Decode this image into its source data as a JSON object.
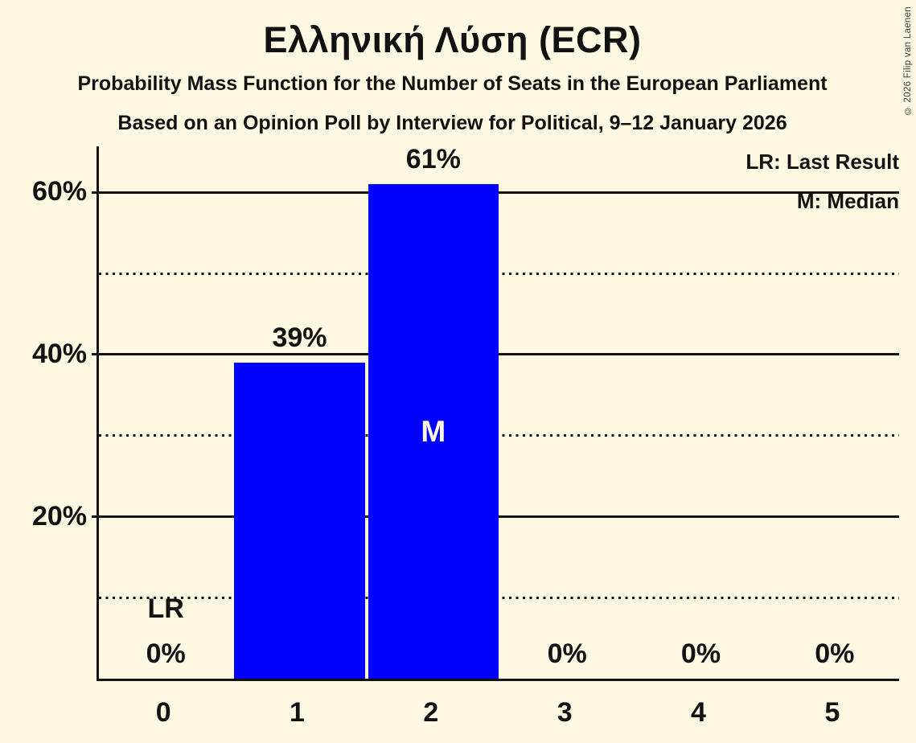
{
  "title": "Ελληνική Λύση (ECR)",
  "subtitle1": "Probability Mass Function for the Number of Seats in the European Parliament",
  "subtitle2": "Based on an Opinion Poll by Interview for Political, 9–12 January 2026",
  "copyright": "© 2026 Filip van Laenen",
  "legend": {
    "lr": "LR: Last Result",
    "m": "M: Median"
  },
  "colors": {
    "background": "#FDF8E1",
    "bar": "#0000FF",
    "text": "#121212",
    "median_text": "#FDF8E1"
  },
  "chart_data": {
    "type": "bar",
    "title": "Ελληνική Λύση (ECR)",
    "categories": [
      "0",
      "1",
      "2",
      "3",
      "4",
      "5"
    ],
    "values": [
      0,
      39,
      61,
      0,
      0,
      0
    ],
    "bar_labels": [
      "0%",
      "39%",
      "61%",
      "0%",
      "0%",
      "0%"
    ],
    "xlabel": "",
    "ylabel": "",
    "ylim": [
      0,
      66
    ],
    "yticks_solid": [
      20,
      40,
      60
    ],
    "ytick_labels": [
      "20%",
      "40%",
      "60%"
    ],
    "yticks_dotted": [
      10,
      30,
      50
    ],
    "grid": "solid lines at 20/40/60, dotted lines at 10/30/50",
    "legend_position": "top-right",
    "median_category": "2",
    "median_marker": "M",
    "last_result_category": "0",
    "last_result_marker": "LR"
  }
}
